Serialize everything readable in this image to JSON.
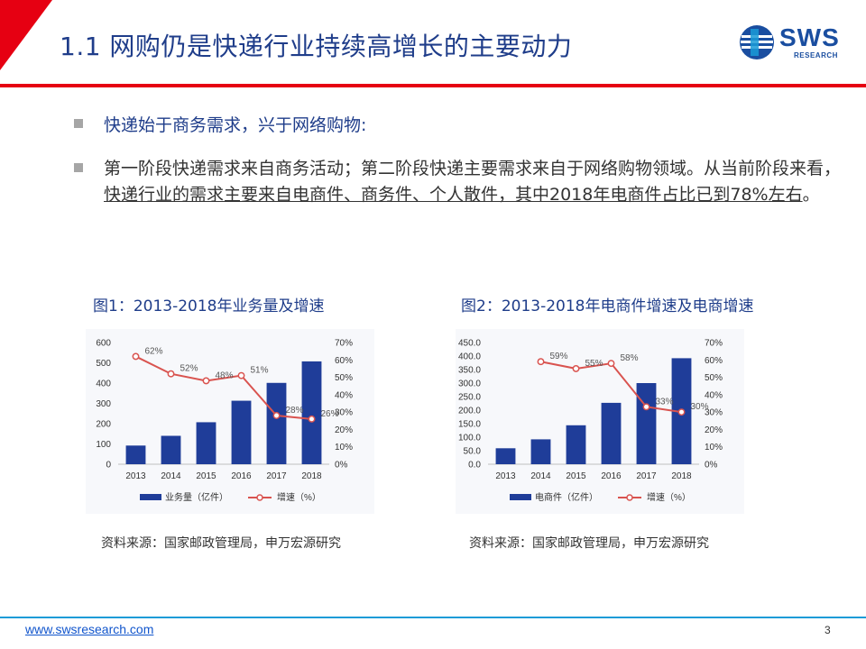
{
  "header": {
    "title": "1.1 网购仍是快递行业持续高增长的主要动力",
    "logo_text": "SWS",
    "logo_sub": "RESEARCH",
    "brand_color": "#1a4ea0",
    "accent_red": "#e60012"
  },
  "bullets": {
    "b1": "快递始于商务需求，兴于网络购物:",
    "b2_plain": "第一阶段快递需求来自商务活动；第二阶段快递主要需求来自于网络购物领域。从当前阶段来看，",
    "b2_underlined": "快递行业的需求主要来自电商件、商务件、个人散件，其中2018年电商件占比已到78%左右",
    "b2_end": "。"
  },
  "figures": {
    "fig1_title": "图1：2013-2018年业务量及增速",
    "fig2_title": "图2：2013-2018年电商件增速及电商增速",
    "fig1_source": "资料来源：国家邮政管理局，申万宏源研究",
    "fig2_source": "资料来源：国家邮政管理局，申万宏源研究"
  },
  "chart_data": [
    {
      "type": "bar",
      "categories": [
        "2013",
        "2014",
        "2015",
        "2016",
        "2017",
        "2018"
      ],
      "series": [
        {
          "name": "业务量（亿件）",
          "type": "bar",
          "axis": "left",
          "color": "#1f3d99",
          "values": [
            92,
            140,
            207,
            313,
            401,
            507
          ]
        },
        {
          "name": "增速（%）",
          "type": "line",
          "axis": "right",
          "color": "#d9534f",
          "values": [
            62,
            52,
            48,
            51,
            28,
            26
          ],
          "labels": [
            "62%",
            "52%",
            "48%",
            "51%",
            "28%",
            "26%"
          ]
        }
      ],
      "ylim": [
        0,
        600
      ],
      "yticks": [
        "0",
        "100",
        "200",
        "300",
        "400",
        "500",
        "600"
      ],
      "y2lim": [
        0,
        70
      ],
      "y2ticks": [
        "0%",
        "10%",
        "20%",
        "30%",
        "40%",
        "50%",
        "60%",
        "70%"
      ],
      "legend": "bottom",
      "grid": false
    },
    {
      "type": "bar",
      "categories": [
        "2013",
        "2014",
        "2015",
        "2016",
        "2017",
        "2018"
      ],
      "series": [
        {
          "name": "电商件（亿件）",
          "type": "bar",
          "axis": "left",
          "color": "#1f3d99",
          "values": [
            59,
            92,
            144,
            227,
            300,
            392
          ]
        },
        {
          "name": "增速（%）",
          "type": "line",
          "axis": "right",
          "color": "#d9534f",
          "start": 1,
          "values": [
            null,
            59,
            55,
            58,
            33,
            30
          ],
          "labels": [
            "",
            "59%",
            "55%",
            "58%",
            "33%",
            "30%"
          ]
        }
      ],
      "ylim": [
        0,
        450
      ],
      "yticks": [
        "0.0",
        "50.0",
        "100.0",
        "150.0",
        "200.0",
        "250.0",
        "300.0",
        "350.0",
        "400.0",
        "450.0"
      ],
      "y2lim": [
        0,
        70
      ],
      "y2ticks": [
        "0%",
        "10%",
        "20%",
        "30%",
        "40%",
        "50%",
        "60%",
        "70%"
      ],
      "legend": "bottom",
      "grid": false
    }
  ],
  "footer": {
    "url": "www.swsresearch.com",
    "page": "3"
  }
}
